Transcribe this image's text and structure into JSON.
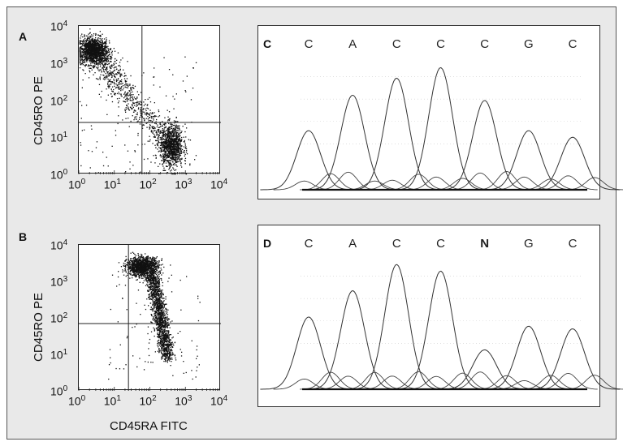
{
  "panels": {
    "A": {
      "letter": "A"
    },
    "B": {
      "letter": "B"
    },
    "C": {
      "letter": "C",
      "bases": [
        "C",
        "A",
        "C",
        "C",
        "C",
        "G",
        "C"
      ]
    },
    "D": {
      "letter": "D",
      "bases": [
        "C",
        "A",
        "C",
        "C",
        "N",
        "G",
        "C"
      ],
      "highlight_index": 4
    }
  },
  "axes": {
    "y_title": "CD45RO PE",
    "x_title": "CD45RA FITC",
    "tick_base": "10",
    "tick_exponents": [
      "0",
      "1",
      "2",
      "3",
      "4"
    ]
  },
  "chart_data": [
    {
      "type": "scatter",
      "panel": "A",
      "xlabel": "",
      "ylabel": "CD45RO PE",
      "xscale": "log",
      "yscale": "log",
      "xlim": [
        1,
        10000
      ],
      "ylim": [
        1,
        10000
      ],
      "gates": {
        "x": 60,
        "y": 25
      },
      "populations": [
        {
          "center": [
            2.5,
            2000
          ],
          "spread": "dense upper-left cluster"
        },
        {
          "center": [
            50,
            100
          ],
          "spread": "diagonal transition band"
        },
        {
          "center": [
            400,
            8
          ],
          "spread": "dense lower-right cluster"
        }
      ]
    },
    {
      "type": "scatter",
      "panel": "B",
      "xlabel": "CD45RA FITC",
      "ylabel": "CD45RO PE",
      "xscale": "log",
      "yscale": "log",
      "xlim": [
        1,
        10000
      ],
      "ylim": [
        1,
        10000
      ],
      "gates": {
        "x": 25,
        "y": 70
      },
      "populations": [
        {
          "center": [
            60,
            2500
          ],
          "spread": "dense upper cluster"
        },
        {
          "center": [
            250,
            10
          ],
          "spread": "vertical band descending to lower-right"
        }
      ]
    },
    {
      "type": "line",
      "panel": "C",
      "bases": [
        "C",
        "A",
        "C",
        "C",
        "C",
        "G",
        "C"
      ],
      "peaks": [
        0.45,
        0.72,
        0.85,
        0.93,
        0.68,
        0.45,
        0.4
      ]
    },
    {
      "type": "line",
      "panel": "D",
      "bases": [
        "C",
        "A",
        "C",
        "C",
        "N",
        "G",
        "C"
      ],
      "peaks": [
        0.55,
        0.75,
        0.95,
        0.9,
        0.3,
        0.48,
        0.46
      ]
    }
  ]
}
